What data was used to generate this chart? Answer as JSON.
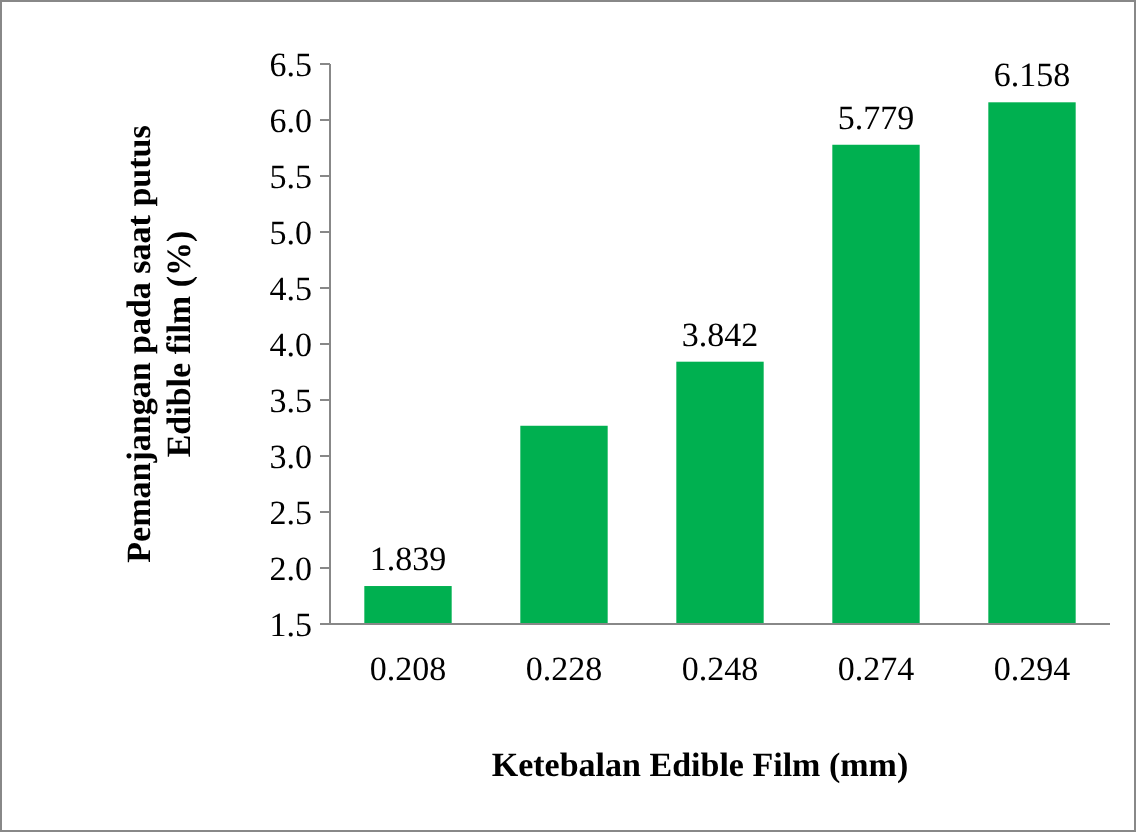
{
  "chart_data": {
    "type": "bar",
    "xlabel": "Ketebalan Edible Film (mm)",
    "ylabel": "Pemanjangan pada saat putus\nEdible film (%)",
    "categories": [
      "0.208",
      "0.228",
      "0.248",
      "0.274",
      "0.294"
    ],
    "values": [
      1.839,
      3.27,
      3.842,
      5.779,
      6.158
    ],
    "value_labels": [
      "1.839",
      null,
      "3.842",
      "5.779",
      "6.158"
    ],
    "color": "#00b050",
    "ylim": [
      1.5,
      6.5
    ],
    "yticks": [
      "1.5",
      "2.0",
      "2.5",
      "3.0",
      "3.5",
      "4.0",
      "4.5",
      "5.0",
      "5.5",
      "6.0",
      "6.5"
    ],
    "grid": false
  }
}
